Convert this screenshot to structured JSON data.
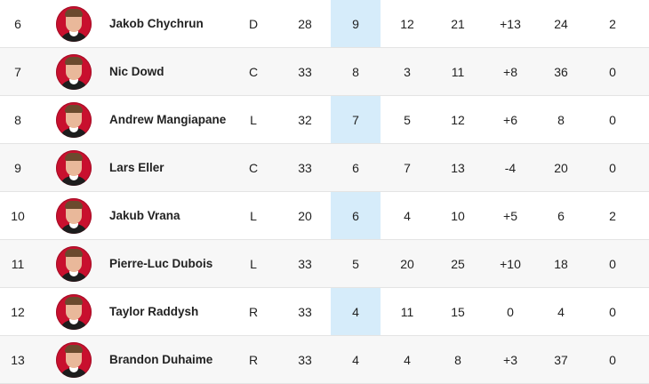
{
  "rows": [
    {
      "rank": "6",
      "name": "Jakob Chychrun",
      "pos": "D",
      "gp": "28",
      "g": "9",
      "a": "12",
      "p": "21",
      "pm": "+13",
      "pim": "24",
      "ppg": "2"
    },
    {
      "rank": "7",
      "name": "Nic Dowd",
      "pos": "C",
      "gp": "33",
      "g": "8",
      "a": "3",
      "p": "11",
      "pm": "+8",
      "pim": "36",
      "ppg": "0"
    },
    {
      "rank": "8",
      "name": "Andrew Mangiapane",
      "pos": "L",
      "gp": "32",
      "g": "7",
      "a": "5",
      "p": "12",
      "pm": "+6",
      "pim": "8",
      "ppg": "0"
    },
    {
      "rank": "9",
      "name": "Lars Eller",
      "pos": "C",
      "gp": "33",
      "g": "6",
      "a": "7",
      "p": "13",
      "pm": "-4",
      "pim": "20",
      "ppg": "0"
    },
    {
      "rank": "10",
      "name": "Jakub Vrana",
      "pos": "L",
      "gp": "20",
      "g": "6",
      "a": "4",
      "p": "10",
      "pm": "+5",
      "pim": "6",
      "ppg": "2"
    },
    {
      "rank": "11",
      "name": "Pierre-Luc Dubois",
      "pos": "L",
      "gp": "33",
      "g": "5",
      "a": "20",
      "p": "25",
      "pm": "+10",
      "pim": "18",
      "ppg": "0"
    },
    {
      "rank": "12",
      "name": "Taylor Raddysh",
      "pos": "R",
      "gp": "33",
      "g": "4",
      "a": "11",
      "p": "15",
      "pm": "0",
      "pim": "4",
      "ppg": "0"
    },
    {
      "rank": "13",
      "name": "Brandon Duhaime",
      "pos": "R",
      "gp": "33",
      "g": "4",
      "a": "4",
      "p": "8",
      "pm": "+3",
      "pim": "37",
      "ppg": "0"
    }
  ],
  "colors": {
    "highlight": "#d6ecfa",
    "avatar_bg": "#c8102e",
    "row_alt": "#f7f7f7"
  },
  "icons": {
    "avatar": "player-headshot"
  }
}
